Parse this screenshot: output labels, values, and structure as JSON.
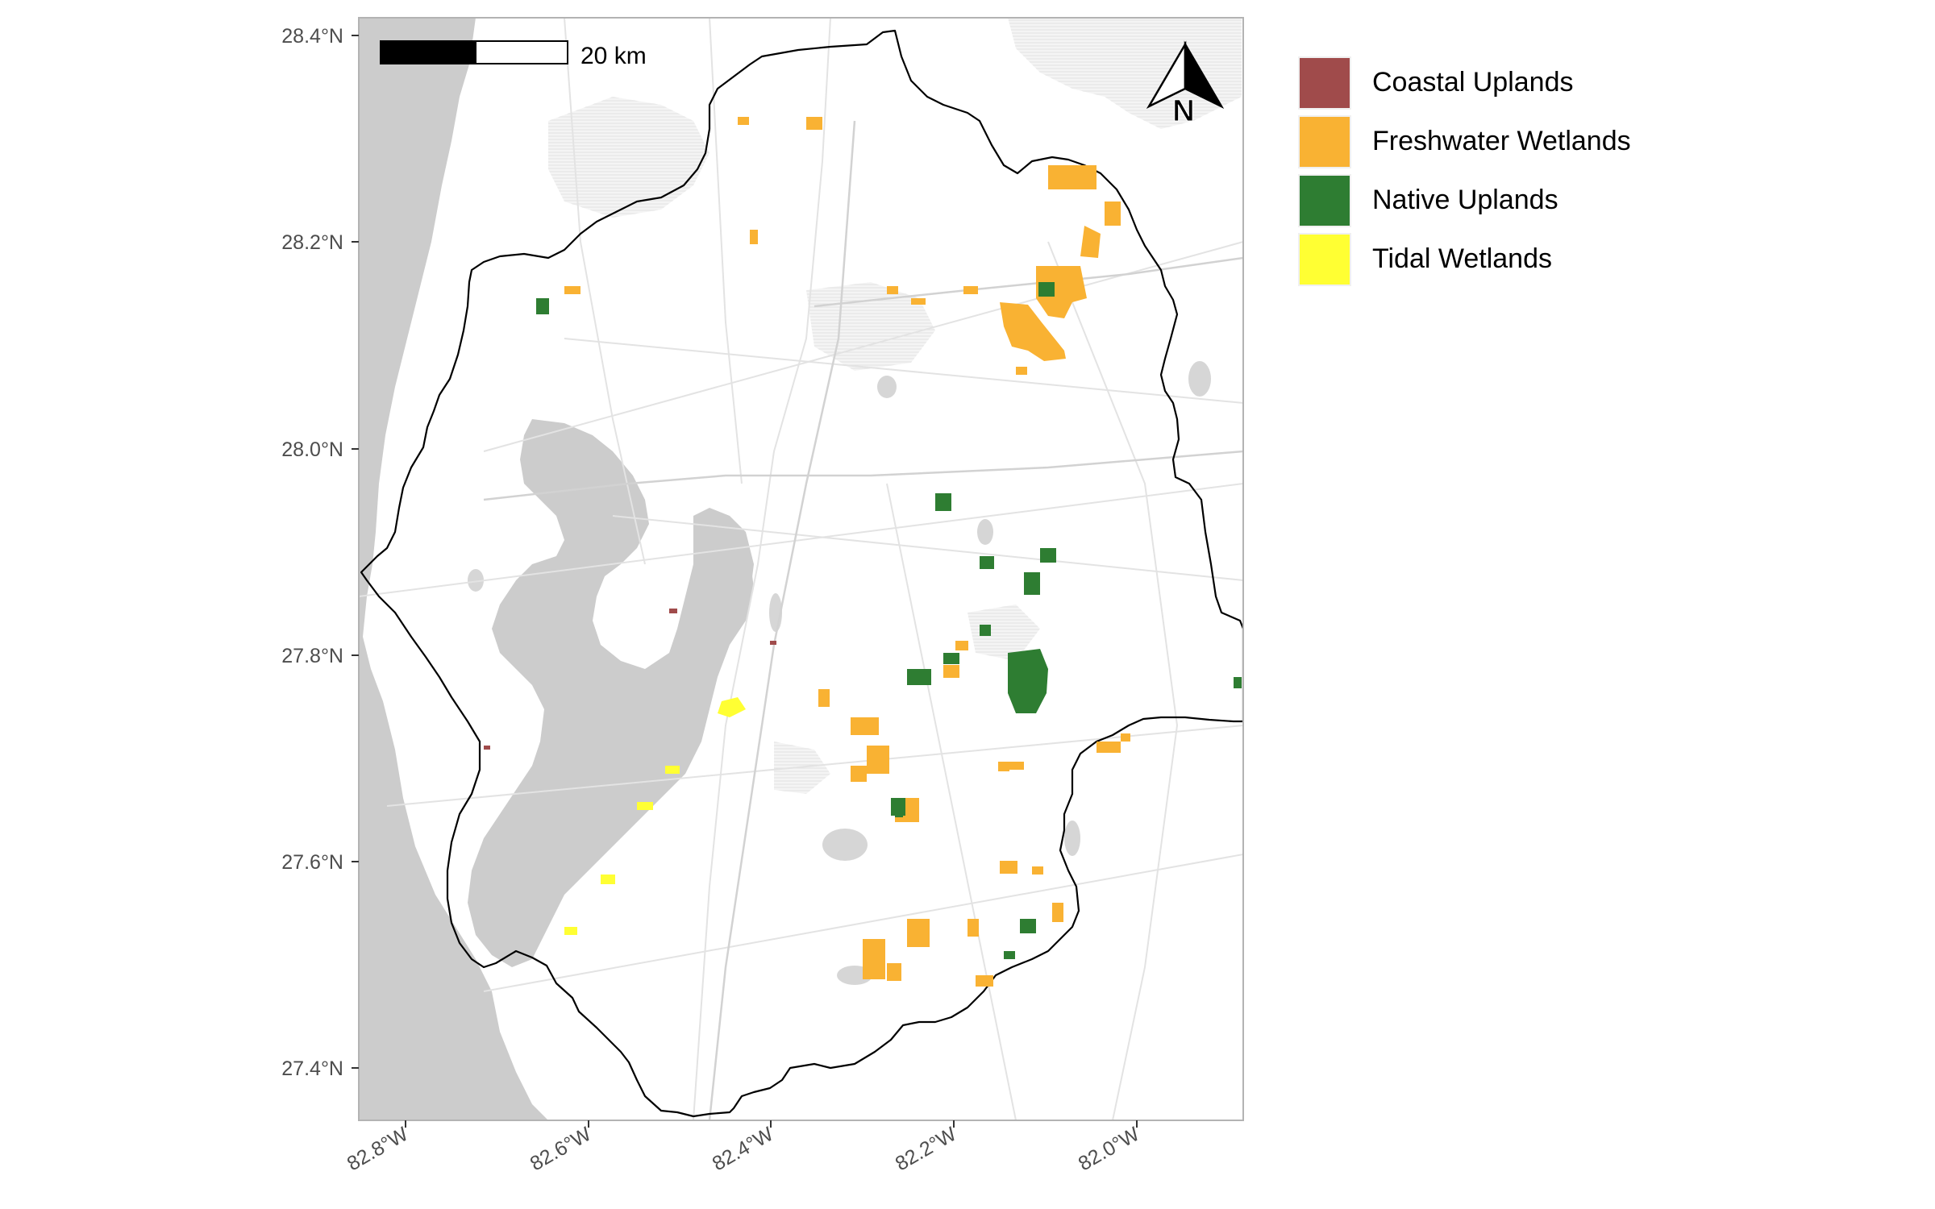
{
  "map": {
    "scale_bar": {
      "label": "20 km"
    },
    "north_arrow": {
      "label": "N"
    },
    "y_axis_ticks": [
      "28.4°N",
      "28.2°N",
      "28.0°N",
      "27.8°N",
      "27.6°N",
      "27.4°N"
    ],
    "x_axis_ticks": [
      "82.8°W",
      "82.6°W",
      "82.4°W",
      "82.2°W",
      "82.0°W"
    ],
    "colors": {
      "background_land": "#ffffff",
      "water": "#cccccc",
      "roads": "#e6e6e6",
      "boundary": "#000000",
      "panel_border": "#b3b3b3"
    }
  },
  "legend": {
    "items": [
      {
        "label": "Coastal Uplands",
        "color": "#A04B4B"
      },
      {
        "label": "Freshwater Wetlands",
        "color": "#F9B233"
      },
      {
        "label": "Native Uplands",
        "color": "#2E7D32"
      },
      {
        "label": "Tidal Wetlands",
        "color": "#FFFF33"
      }
    ]
  }
}
